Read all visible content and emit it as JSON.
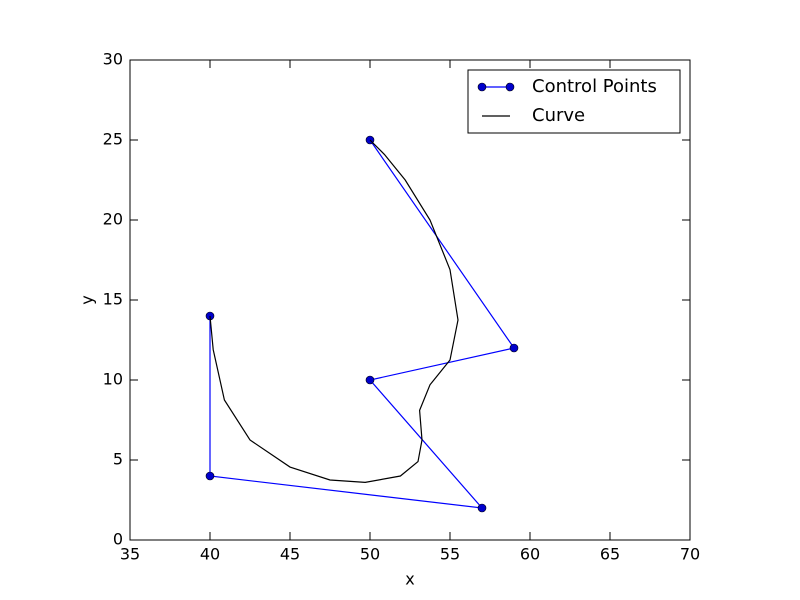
{
  "chart_data": {
    "type": "line",
    "xlabel": "x",
    "ylabel": "y",
    "xlim": [
      35,
      70
    ],
    "ylim": [
      0,
      30
    ],
    "xticks": [
      35,
      40,
      45,
      50,
      55,
      60,
      65,
      70
    ],
    "yticks": [
      0,
      5,
      10,
      15,
      20,
      25,
      30
    ],
    "legend": "upper right",
    "series": [
      {
        "name": "Control Points",
        "color": "#0000ff",
        "marker": true,
        "x": [
          40,
          40,
          57,
          50,
          59,
          50
        ],
        "values": [
          14,
          4,
          2,
          10,
          12,
          25
        ]
      },
      {
        "name": "Curve",
        "color": "#000000",
        "marker": false,
        "x": [
          40,
          40.2,
          40.9,
          42.5,
          45,
          47.5,
          49.7,
          51.9,
          53,
          53.25,
          53.1,
          53.75,
          55,
          55.5,
          55,
          53.75,
          52.2,
          50.9,
          50
        ],
        "values": [
          14,
          11.9,
          8.75,
          6.25,
          4.56,
          3.75,
          3.6,
          4,
          4.9,
          6.25,
          8.1,
          9.7,
          11.25,
          13.75,
          16.9,
          20,
          22.5,
          24.1,
          25
        ]
      }
    ]
  }
}
